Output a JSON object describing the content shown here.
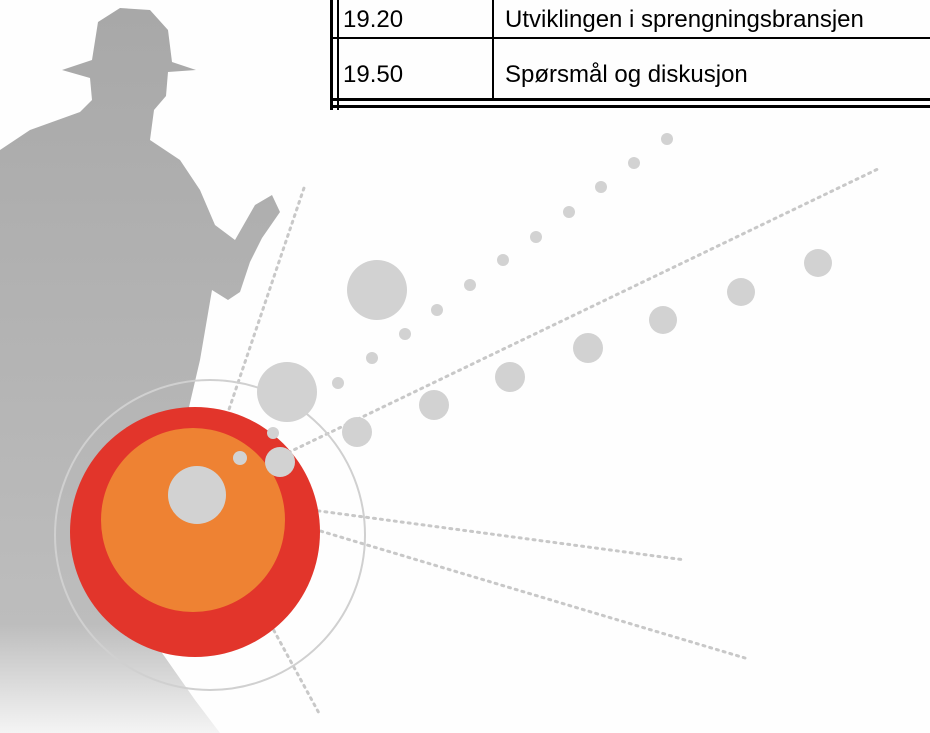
{
  "table": {
    "rows": [
      [
        "19.20",
        "Utviklingen i sprengningsbransjen"
      ],
      [
        "19.50",
        "Spørsmål og diskusjon"
      ]
    ]
  }
}
